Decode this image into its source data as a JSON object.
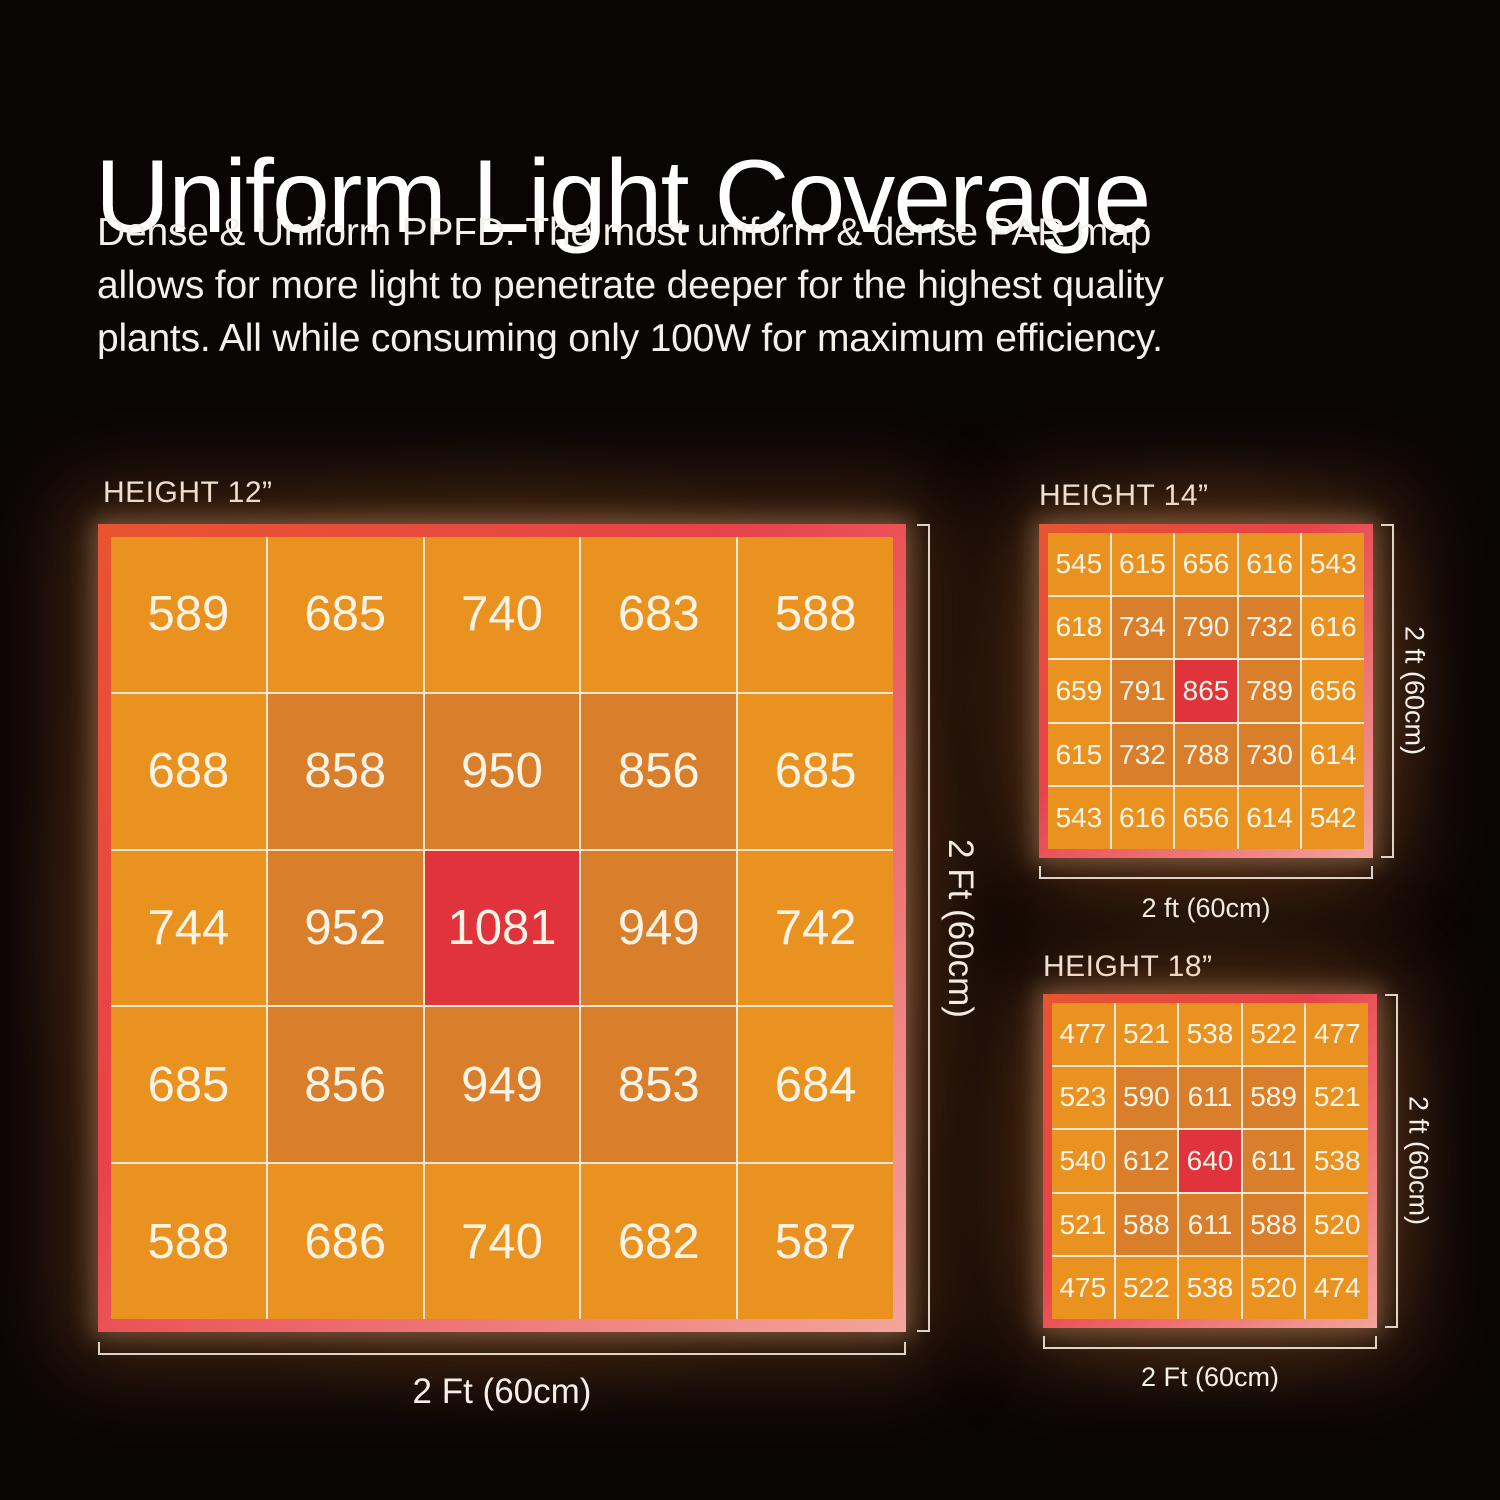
{
  "header": {
    "title": "Uniform Light Coverage",
    "description_lines": [
      "Dense & Uniform PPFD. The most uniform & dense PAR map",
      "allows for more light to penetrate deeper for the highest quality",
      "plants. All while consuming only 100W for maximum efficiency."
    ]
  },
  "colors": {
    "cell_low": "#ea9220",
    "cell_mid": "#d97e2b",
    "cell_peak": "#e1333c",
    "gridline": "#f6e7d3",
    "frame_gradient_start": "#e85430",
    "frame_gradient_mid": "#e8424a",
    "frame_gradient_end": "#f3a49d",
    "bracket": "#ddd3c7",
    "value_text": "#fbf4e6"
  },
  "chart_data": [
    {
      "id": "height-12",
      "type": "heatmap",
      "title": "HEIGHT 12”",
      "rows": 5,
      "cols": 5,
      "values": [
        [
          589,
          685,
          740,
          683,
          588
        ],
        [
          688,
          858,
          950,
          856,
          685
        ],
        [
          744,
          952,
          1081,
          949,
          742
        ],
        [
          685,
          856,
          949,
          853,
          684
        ],
        [
          588,
          686,
          740,
          682,
          587
        ]
      ],
      "width_label": "2 Ft (60cm)",
      "height_label": "2 Ft (60cm)",
      "peak_value": 1081
    },
    {
      "id": "height-14",
      "type": "heatmap",
      "title": "HEIGHT 14”",
      "rows": 5,
      "cols": 5,
      "values": [
        [
          545,
          615,
          656,
          616,
          543
        ],
        [
          618,
          734,
          790,
          732,
          616
        ],
        [
          659,
          791,
          865,
          789,
          656
        ],
        [
          615,
          732,
          788,
          730,
          614
        ],
        [
          543,
          616,
          656,
          614,
          542
        ]
      ],
      "width_label": "2 ft (60cm)",
      "height_label": "2 ft (60cm)",
      "peak_value": 865
    },
    {
      "id": "height-18",
      "type": "heatmap",
      "title": "HEIGHT 18”",
      "rows": 5,
      "cols": 5,
      "values": [
        [
          477,
          521,
          538,
          522,
          477
        ],
        [
          523,
          590,
          611,
          589,
          521
        ],
        [
          540,
          612,
          640,
          611,
          538
        ],
        [
          521,
          588,
          611,
          588,
          520
        ],
        [
          475,
          522,
          538,
          520,
          474
        ]
      ],
      "width_label": "2 Ft (60cm)",
      "height_label": "2 ft (60cm)",
      "peak_value": 640
    }
  ]
}
